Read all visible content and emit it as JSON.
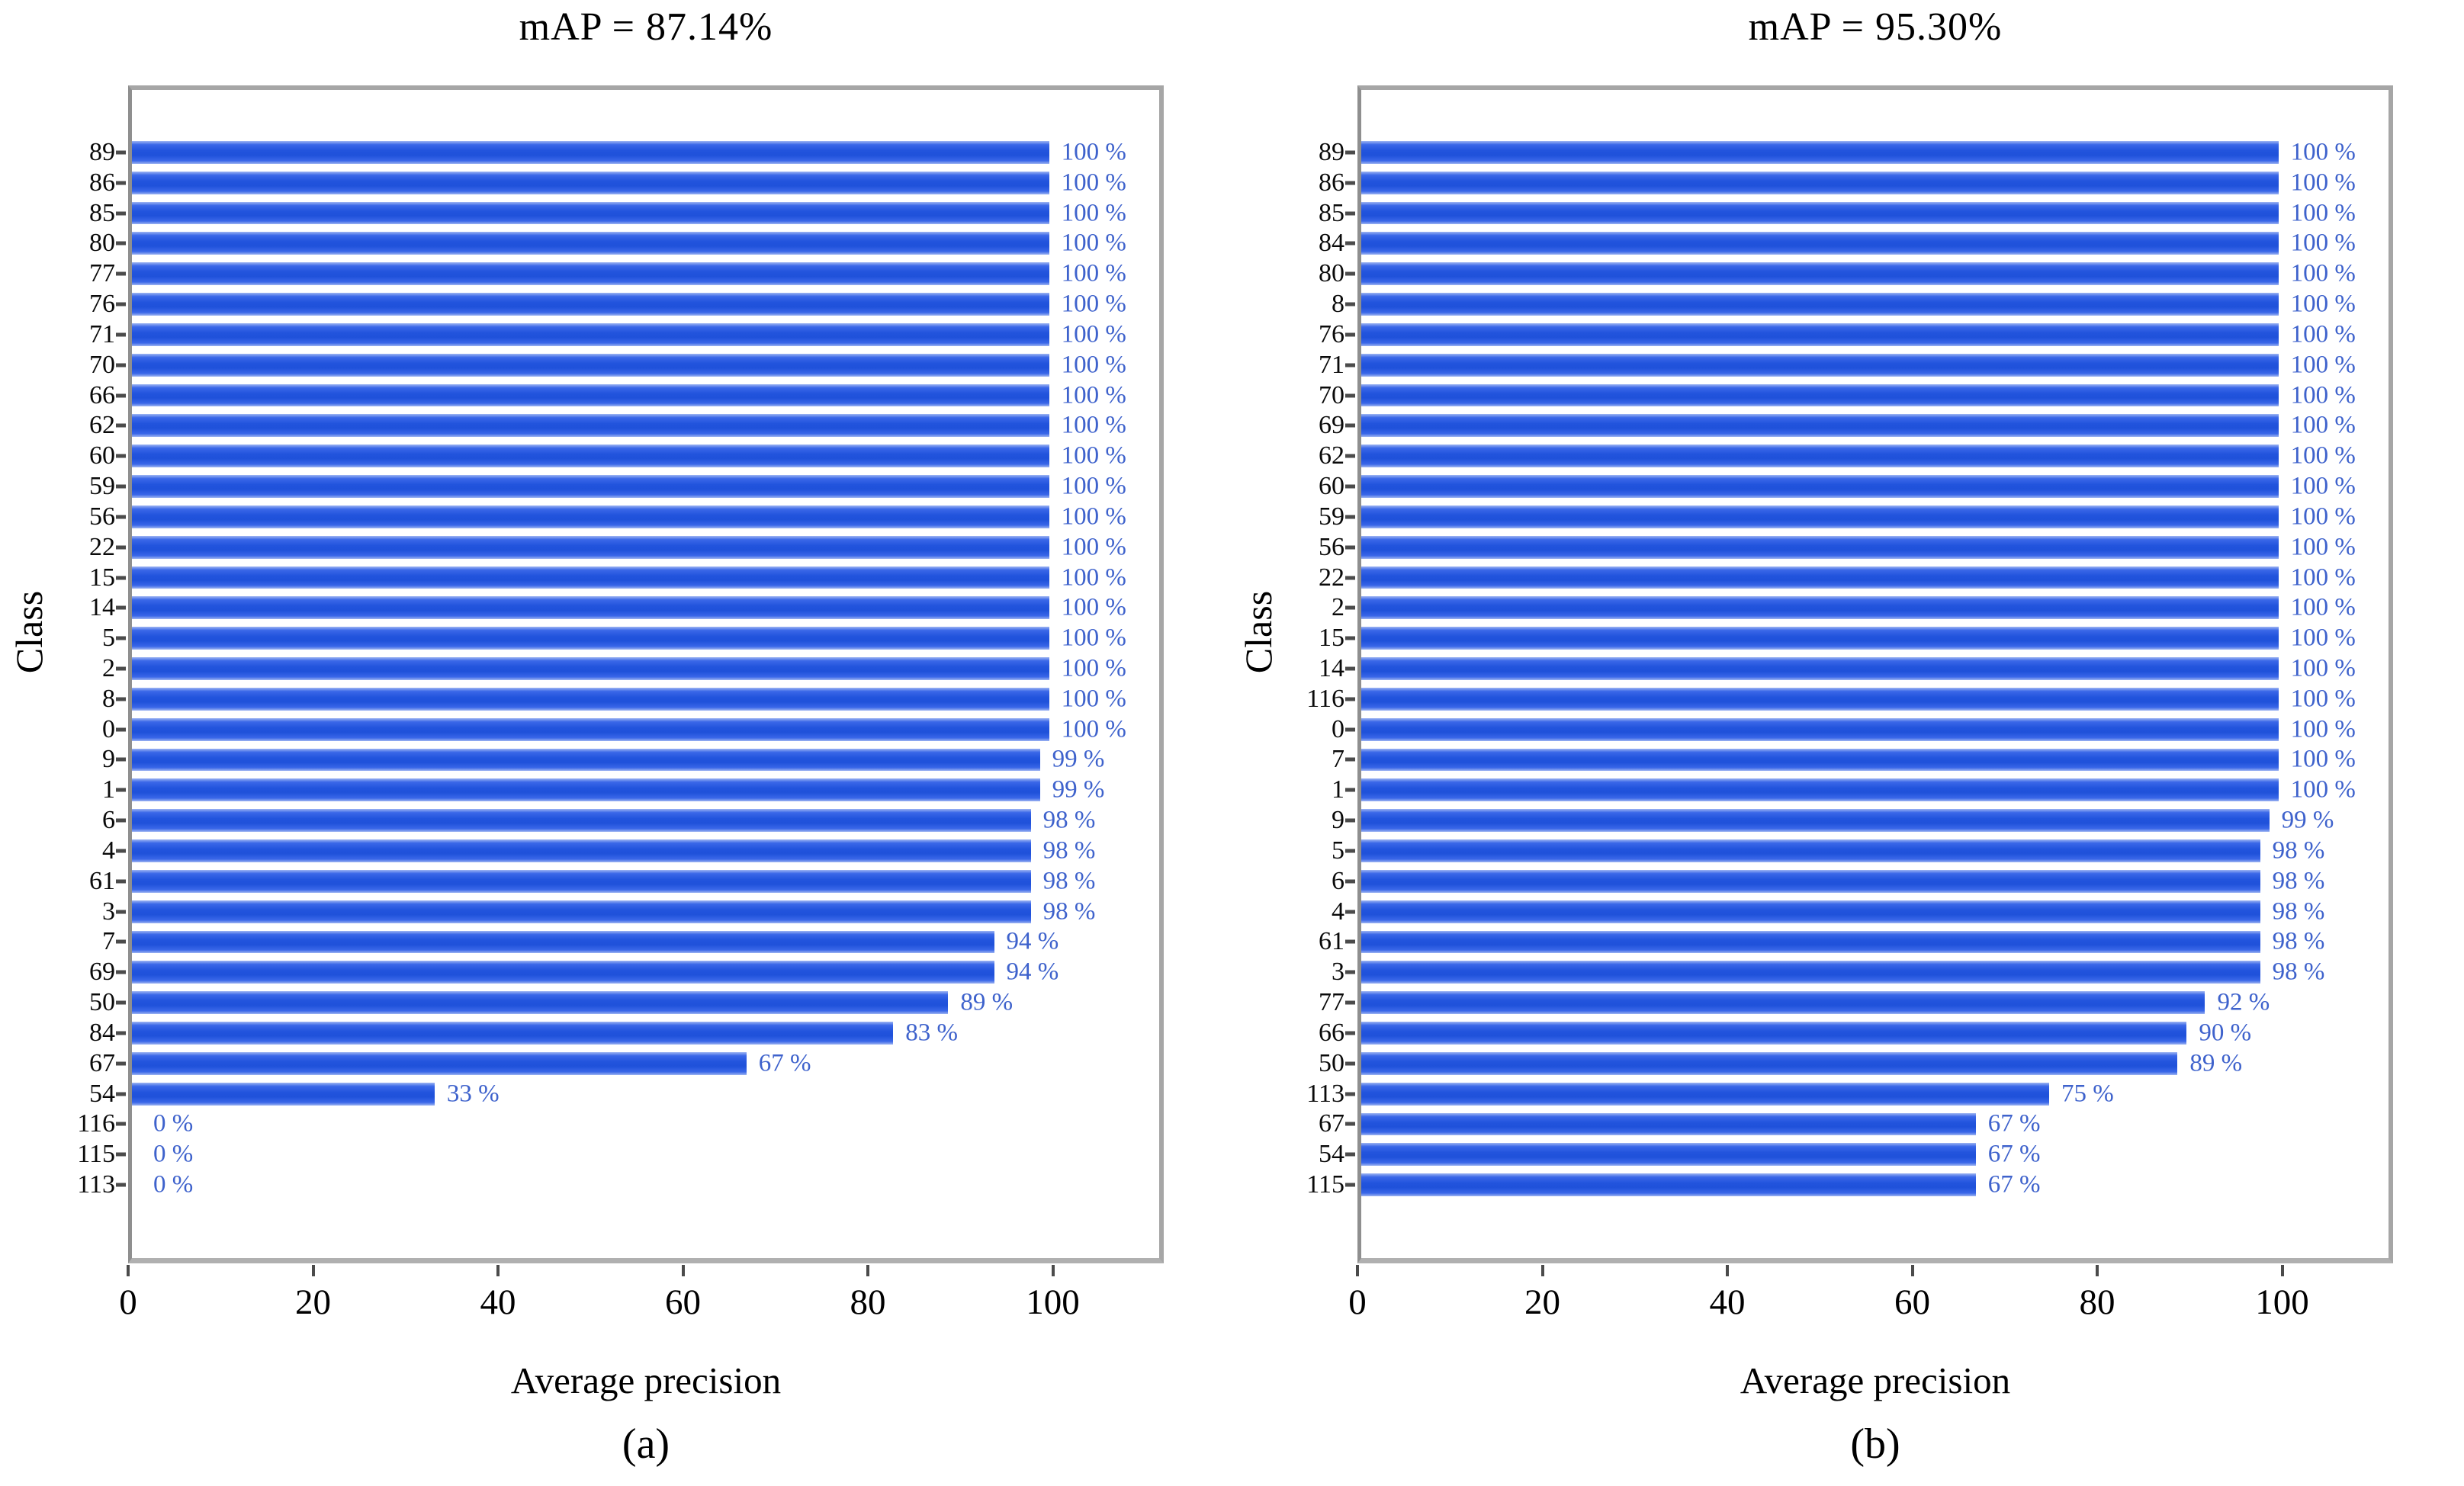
{
  "figure": {
    "colors": {
      "bar_blue": "#2254dd",
      "value_text": "#3e62cc",
      "axis_border": "#a6a6a6",
      "tick_color": "#4b4b4b",
      "label_text": "#0a0a0a"
    }
  },
  "chart_data": [
    {
      "id": "a",
      "type": "bar",
      "orientation": "horizontal",
      "title": "mAP = 87.14%",
      "xlabel": "Average precision",
      "ylabel": "Class",
      "caption": "(a)",
      "grid": false,
      "legend": "none",
      "xlim": [
        0,
        112
      ],
      "x_ticks": [
        0,
        20,
        40,
        60,
        80,
        100
      ],
      "categories": [
        "89",
        "86",
        "85",
        "80",
        "77",
        "76",
        "71",
        "70",
        "66",
        "62",
        "60",
        "59",
        "56",
        "22",
        "15",
        "14",
        "5",
        "2",
        "8",
        "0",
        "9",
        "1",
        "6",
        "4",
        "61",
        "3",
        "7",
        "69",
        "50",
        "84",
        "67",
        "54",
        "116",
        "115",
        "113"
      ],
      "values": [
        100,
        100,
        100,
        100,
        100,
        100,
        100,
        100,
        100,
        100,
        100,
        100,
        100,
        100,
        100,
        100,
        100,
        100,
        100,
        100,
        99,
        99,
        98,
        98,
        98,
        98,
        94,
        94,
        89,
        83,
        67,
        33,
        0,
        0,
        0
      ],
      "value_labels": [
        "100 %",
        "100 %",
        "100 %",
        "100 %",
        "100 %",
        "100 %",
        "100 %",
        "100 %",
        "100 %",
        "100 %",
        "100 %",
        "100 %",
        "100 %",
        "100 %",
        "100 %",
        "100 %",
        "100 %",
        "100 %",
        "100 %",
        "100 %",
        "99 %",
        "99 %",
        "98 %",
        "98 %",
        "98 %",
        "98 %",
        "94 %",
        "94 %",
        "89 %",
        "83 %",
        "67 %",
        "33 %",
        "0 %",
        "0 %",
        "0 %"
      ]
    },
    {
      "id": "b",
      "type": "bar",
      "orientation": "horizontal",
      "title": "mAP = 95.30%",
      "xlabel": "Average precision",
      "ylabel": "Class",
      "caption": "(b)",
      "grid": false,
      "legend": "none",
      "xlim": [
        0,
        112
      ],
      "x_ticks": [
        0,
        20,
        40,
        60,
        80,
        100
      ],
      "categories": [
        "89",
        "86",
        "85",
        "84",
        "80",
        "8",
        "76",
        "71",
        "70",
        "69",
        "62",
        "60",
        "59",
        "56",
        "22",
        "2",
        "15",
        "14",
        "116",
        "0",
        "7",
        "1",
        "9",
        "5",
        "6",
        "4",
        "61",
        "3",
        "77",
        "66",
        "50",
        "113",
        "67",
        "54",
        "115"
      ],
      "values": [
        100,
        100,
        100,
        100,
        100,
        100,
        100,
        100,
        100,
        100,
        100,
        100,
        100,
        100,
        100,
        100,
        100,
        100,
        100,
        100,
        100,
        100,
        99,
        98,
        98,
        98,
        98,
        98,
        92,
        90,
        89,
        75,
        67,
        67,
        67
      ],
      "value_labels": [
        "100 %",
        "100 %",
        "100 %",
        "100 %",
        "100 %",
        "100 %",
        "100 %",
        "100 %",
        "100 %",
        "100 %",
        "100 %",
        "100 %",
        "100 %",
        "100 %",
        "100 %",
        "100 %",
        "100 %",
        "100 %",
        "100 %",
        "100 %",
        "100 %",
        "100 %",
        "99 %",
        "98 %",
        "98 %",
        "98 %",
        "98 %",
        "98 %",
        "92 %",
        "90 %",
        "89 %",
        "75 %",
        "67 %",
        "67 %",
        "67 %"
      ]
    }
  ]
}
